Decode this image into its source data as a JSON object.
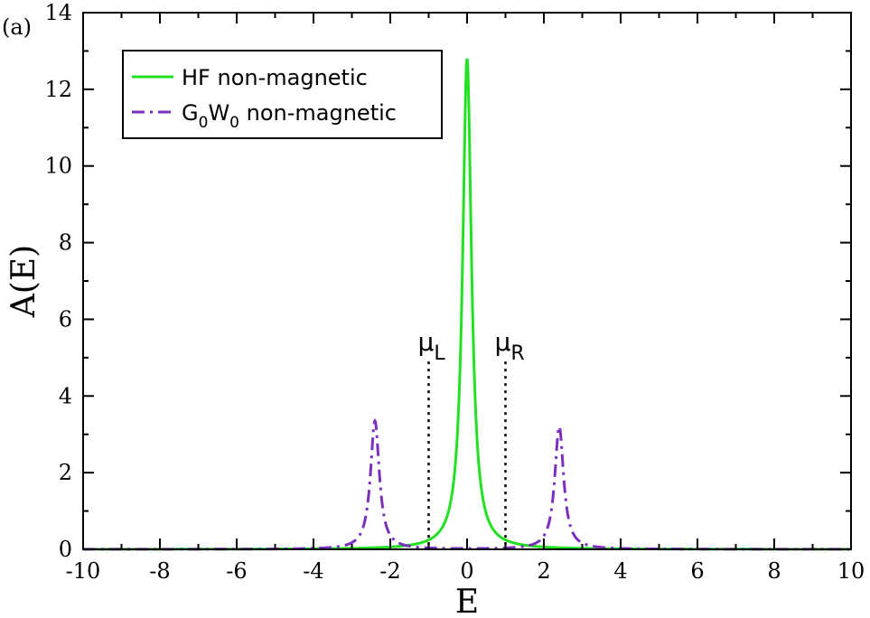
{
  "panel_label": "(a)",
  "chart_data": {
    "type": "line",
    "xlabel": "E",
    "ylabel": "A(E)",
    "xlim": [
      -10,
      10
    ],
    "ylim": [
      0,
      14
    ],
    "xticks": [
      -10,
      -8,
      -6,
      -4,
      -2,
      0,
      2,
      4,
      6,
      8,
      10
    ],
    "xtick_labels": [
      "-10",
      "-8",
      "-6",
      "-4",
      "-2",
      "0",
      "2",
      "4",
      "6",
      "8",
      "10"
    ],
    "yticks": [
      0,
      2,
      4,
      6,
      8,
      10,
      12,
      14
    ],
    "ytick_labels": [
      "0",
      "2",
      "4",
      "6",
      "8",
      "10",
      "12",
      "14"
    ],
    "grid": false,
    "legend_position": "top-left",
    "series": [
      {
        "name": "HF non-magnetic",
        "name_parts": [
          "HF non-magnetic"
        ],
        "style": "solid",
        "color": "#22e022",
        "peaks": [
          {
            "center": 0.0,
            "height": 12.8
          }
        ]
      },
      {
        "name": "G0W0 non-magnetic",
        "name_parts": [
          "G",
          "0",
          "W",
          "0",
          " non-magnetic"
        ],
        "style": "dash-dot",
        "color": "#7b2fbe",
        "peaks": [
          {
            "center": -2.4,
            "height": 3.35
          },
          {
            "center": 2.4,
            "height": 3.2
          }
        ]
      }
    ],
    "annotations": [
      {
        "x": -1.0,
        "label": "μ",
        "sub": "L",
        "style": "dotted",
        "y_top": 4.9
      },
      {
        "x": 1.0,
        "label": "μ",
        "sub": "R",
        "style": "dotted",
        "y_top": 4.9
      }
    ]
  }
}
